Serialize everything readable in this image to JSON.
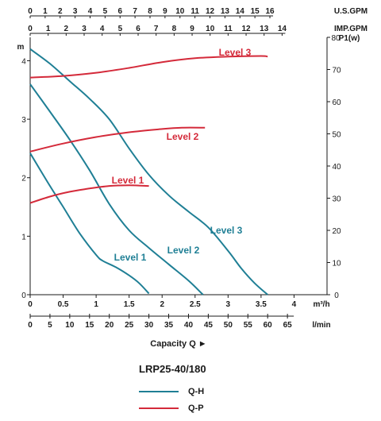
{
  "chart_data": {
    "type": "line",
    "model": "LRP25-40/180",
    "xlabel": "Capacity Q ►",
    "ylabel_left": "m",
    "ylabel_right": "P1(w)",
    "colors": {
      "qh": "#1f7f95",
      "qp": "#d42a3a",
      "axis": "#1a1a1a"
    },
    "grid": false,
    "x_m3h": {
      "unit": "m³/h",
      "ticks": [
        "0",
        "0.5",
        "1",
        "1.5",
        "2",
        "2.5",
        "3",
        "3.5",
        "4"
      ],
      "xlim": [
        0,
        4.5
      ]
    },
    "x_lmin": {
      "unit": "l/min",
      "ticks": [
        "0",
        "5",
        "10",
        "15",
        "20",
        "25",
        "30",
        "35",
        "40",
        "45",
        "50",
        "55",
        "60",
        "65"
      ]
    },
    "x_usgpm": {
      "unit": "U.S.GPM",
      "ticks": [
        "0",
        "1",
        "2",
        "3",
        "4",
        "5",
        "6",
        "7",
        "8",
        "9",
        "10",
        "11",
        "12",
        "13",
        "14",
        "15",
        "16"
      ]
    },
    "x_impgpm": {
      "unit": "IMP.GPM",
      "ticks": [
        "0",
        "1",
        "2",
        "3",
        "4",
        "5",
        "6",
        "7",
        "8",
        "9",
        "10",
        "11",
        "12",
        "13",
        "14"
      ]
    },
    "y_head": {
      "unit": "m",
      "ticks": [
        "0",
        "1",
        "2",
        "3",
        "4"
      ],
      "ylim": [
        0,
        4.4
      ]
    },
    "y_power": {
      "unit": "P1(w)",
      "ticks": [
        "0",
        "10",
        "20",
        "30",
        "40",
        "50",
        "60",
        "70",
        "80"
      ],
      "ylim": [
        0,
        80
      ]
    },
    "series": [
      {
        "name": "Level 1",
        "kind": "Q-H",
        "label": "Level 1",
        "x": [
          0,
          0.25,
          0.5,
          0.75,
          1.0,
          1.1,
          1.3,
          1.5,
          1.65,
          1.8
        ],
        "y": [
          2.42,
          1.95,
          1.5,
          1.05,
          0.68,
          0.58,
          0.47,
          0.33,
          0.2,
          0.02
        ]
      },
      {
        "name": "Level 2",
        "kind": "Q-H",
        "label": "Level 2",
        "x": [
          0,
          0.3,
          0.6,
          0.9,
          1.2,
          1.5,
          1.8,
          2.1,
          2.4,
          2.62
        ],
        "y": [
          3.6,
          3.13,
          2.65,
          2.13,
          1.55,
          1.1,
          0.8,
          0.52,
          0.24,
          0.0
        ]
      },
      {
        "name": "Level 3",
        "kind": "Q-H",
        "label": "Level 3",
        "x": [
          0,
          0.3,
          0.6,
          0.9,
          1.2,
          1.5,
          1.8,
          2.1,
          2.4,
          2.7,
          3.0,
          3.2,
          3.4,
          3.6
        ],
        "y": [
          4.2,
          3.95,
          3.65,
          3.35,
          3.0,
          2.5,
          2.05,
          1.7,
          1.42,
          1.15,
          0.75,
          0.45,
          0.2,
          0.0
        ]
      },
      {
        "name": "Level 1",
        "kind": "Q-P",
        "label": "Level 1",
        "x": [
          0,
          0.3,
          0.6,
          0.9,
          1.2,
          1.5,
          1.8
        ],
        "y": [
          28.5,
          30.5,
          32.0,
          33.0,
          33.8,
          34.0,
          33.8
        ]
      },
      {
        "name": "Level 2",
        "kind": "Q-P",
        "label": "Level 2",
        "x": [
          0,
          0.5,
          1.0,
          1.5,
          2.0,
          2.3,
          2.65
        ],
        "y": [
          44.5,
          47.0,
          49.0,
          50.5,
          51.5,
          51.9,
          51.9
        ]
      },
      {
        "name": "Level 3",
        "kind": "Q-P",
        "label": "Level 3",
        "x": [
          0,
          0.5,
          1.0,
          1.5,
          2.0,
          2.5,
          3.0,
          3.5,
          3.6
        ],
        "y": [
          67.5,
          68.0,
          69.0,
          70.5,
          72.3,
          73.5,
          74.0,
          74.2,
          74.0
        ]
      }
    ],
    "legend": [
      {
        "label": "Q-H",
        "color": "#1f7f95"
      },
      {
        "label": "Q-P",
        "color": "#d42a3a"
      }
    ]
  }
}
